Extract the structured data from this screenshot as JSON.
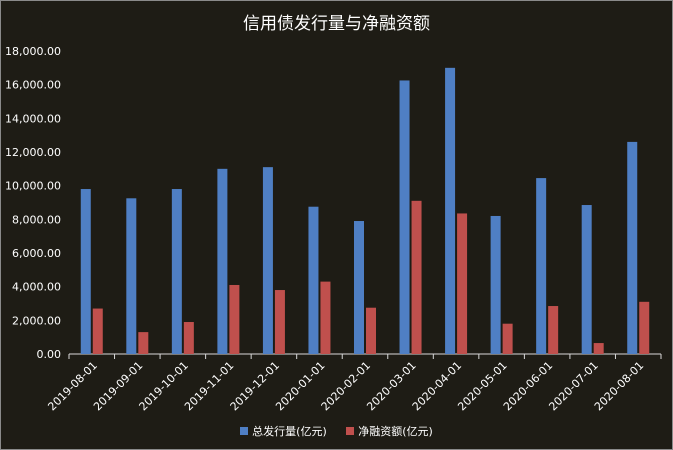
{
  "chart_data": {
    "type": "bar",
    "title": "信用债发行量与净融资额",
    "categories": [
      "2019-08-01",
      "2019-09-01",
      "2019-10-01",
      "2019-11-01",
      "2019-12-01",
      "2020-01-01",
      "2020-02-01",
      "2020-03-01",
      "2020-04-01",
      "2020-05-01",
      "2020-06-01",
      "2020-07-01",
      "2020-08-01"
    ],
    "series": [
      {
        "name": "总发行量(亿元)",
        "color": "#4f7fc4",
        "values": [
          9800,
          9250,
          9800,
          11000,
          11100,
          8750,
          7900,
          16250,
          17000,
          8200,
          10450,
          8850,
          12600
        ]
      },
      {
        "name": "净融资额(亿元)",
        "color": "#c0504d",
        "values": [
          2700,
          1300,
          1900,
          4100,
          3800,
          4300,
          2750,
          9100,
          8350,
          1800,
          2850,
          650,
          3100
        ]
      }
    ],
    "ylim": [
      0,
      18000
    ],
    "yticks": [
      "0.00",
      "2,000.00",
      "4,000.00",
      "6,000.00",
      "8,000.00",
      "10,000.00",
      "12,000.00",
      "14,000.00",
      "16,000.00",
      "18,000.00"
    ],
    "xlabel": "",
    "ylabel": "",
    "grid": false,
    "legend": "bottom"
  }
}
